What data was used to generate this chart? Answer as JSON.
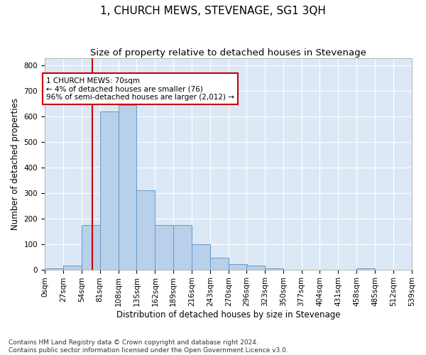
{
  "title": "1, CHURCH MEWS, STEVENAGE, SG1 3QH",
  "subtitle": "Size of property relative to detached houses in Stevenage",
  "xlabel": "Distribution of detached houses by size in Stevenage",
  "ylabel": "Number of detached properties",
  "footnote1": "Contains HM Land Registry data © Crown copyright and database right 2024.",
  "footnote2": "Contains public sector information licensed under the Open Government Licence v3.0.",
  "bin_edges": [
    0,
    27,
    54,
    81,
    108,
    135,
    162,
    189,
    216,
    243,
    270,
    296,
    323,
    350,
    377,
    404,
    431,
    458,
    485,
    512,
    539
  ],
  "bar_heights": [
    5,
    15,
    175,
    620,
    645,
    310,
    175,
    175,
    100,
    45,
    20,
    15,
    5,
    0,
    0,
    0,
    0,
    5,
    0,
    0
  ],
  "bar_color": "#b8d0ea",
  "bar_edge_color": "#6699cc",
  "vline_x": 70,
  "vline_color": "#cc0000",
  "annotation_text": "1 CHURCH MEWS: 70sqm\n← 4% of detached houses are smaller (76)\n96% of semi-detached houses are larger (2,012) →",
  "annotation_box_color": "#ffffff",
  "annotation_box_edge": "#cc0000",
  "ann_x_data": 2,
  "ann_y_data": 755,
  "ylim": [
    0,
    830
  ],
  "yticks": [
    0,
    100,
    200,
    300,
    400,
    500,
    600,
    700,
    800
  ],
  "xlim": [
    0,
    539
  ],
  "background_color": "#dce8f5",
  "grid_color": "#ffffff",
  "title_fontsize": 11,
  "subtitle_fontsize": 9.5,
  "xlabel_fontsize": 8.5,
  "ylabel_fontsize": 8.5,
  "tick_fontsize": 7.5,
  "annotation_fontsize": 7.5,
  "footnote_fontsize": 6.5
}
